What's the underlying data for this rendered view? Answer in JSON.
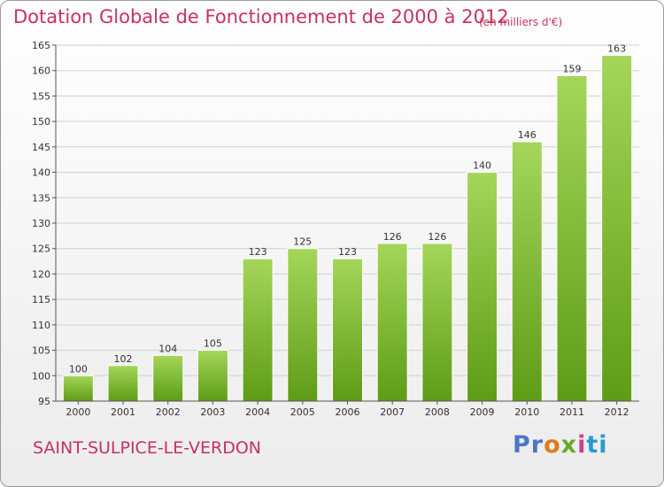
{
  "title": "Dotation Globale de Fonctionnement de 2000 à 2012",
  "unit_note": "(en milliers d'€)",
  "commune": "SAINT-SULPICE-LE-VERDON",
  "brand": {
    "p1": "Pr",
    "p2": "o",
    "p3": "x",
    "p4": "i",
    "p5": "ti"
  },
  "colors": {
    "title": "#c8325a",
    "bar_top": "#a4d65a",
    "bar_bottom": "#5e9c16",
    "grid": "#d0d0d0"
  },
  "chart_data": {
    "type": "bar",
    "title": "Dotation Globale de Fonctionnement de 2000 à 2012",
    "subtitle": "(en milliers d'€)",
    "xlabel": "",
    "ylabel": "",
    "categories": [
      "2000",
      "2001",
      "2002",
      "2003",
      "2004",
      "2005",
      "2006",
      "2007",
      "2008",
      "2009",
      "2010",
      "2011",
      "2012"
    ],
    "values": [
      100,
      102,
      104,
      105,
      123,
      125,
      123,
      126,
      126,
      140,
      146,
      159,
      163
    ],
    "ylim": [
      95,
      165
    ],
    "yticks": [
      95,
      100,
      105,
      110,
      115,
      120,
      125,
      130,
      135,
      140,
      145,
      150,
      155,
      160,
      165
    ],
    "grid": true,
    "data_labels": true
  }
}
